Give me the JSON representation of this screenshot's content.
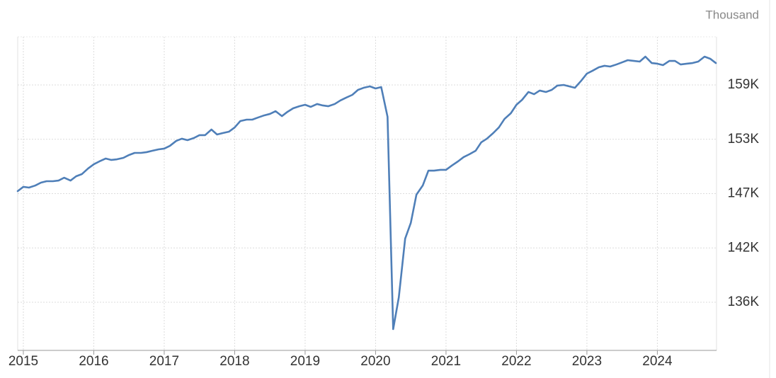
{
  "chart_data": {
    "type": "line",
    "unit_label": "Thousand",
    "x": [
      2014.92,
      2015.0,
      2015.08,
      2015.17,
      2015.25,
      2015.33,
      2015.42,
      2015.5,
      2015.58,
      2015.67,
      2015.75,
      2015.83,
      2015.92,
      2016.0,
      2016.08,
      2016.17,
      2016.25,
      2016.33,
      2016.42,
      2016.5,
      2016.58,
      2016.67,
      2016.75,
      2016.83,
      2016.92,
      2017.0,
      2017.08,
      2017.17,
      2017.25,
      2017.33,
      2017.42,
      2017.5,
      2017.58,
      2017.67,
      2017.75,
      2017.83,
      2017.92,
      2018.0,
      2018.08,
      2018.17,
      2018.25,
      2018.33,
      2018.42,
      2018.5,
      2018.58,
      2018.67,
      2018.75,
      2018.83,
      2018.92,
      2019.0,
      2019.08,
      2019.17,
      2019.25,
      2019.33,
      2019.42,
      2019.5,
      2019.58,
      2019.67,
      2019.75,
      2019.83,
      2019.92,
      2020.0,
      2020.08,
      2020.17,
      2020.25,
      2020.33,
      2020.42,
      2020.5,
      2020.58,
      2020.67,
      2020.75,
      2020.83,
      2020.92,
      2021.0,
      2021.08,
      2021.17,
      2021.25,
      2021.33,
      2021.42,
      2021.5,
      2021.58,
      2021.67,
      2021.75,
      2021.83,
      2021.92,
      2022.0,
      2022.08,
      2022.17,
      2022.25,
      2022.33,
      2022.42,
      2022.5,
      2022.58,
      2022.67,
      2022.75,
      2022.83,
      2022.92,
      2023.0,
      2023.08,
      2023.17,
      2023.25,
      2023.33,
      2023.42,
      2023.5,
      2023.58,
      2023.67,
      2023.75,
      2023.83,
      2023.92,
      2024.0,
      2024.08,
      2024.17,
      2024.25,
      2024.33,
      2024.42,
      2024.5,
      2024.58,
      2024.67,
      2024.75,
      2024.83
    ],
    "series": [
      {
        "color": "#4f7fb8",
        "values": [
          147560,
          148010,
          147930,
          148150,
          148450,
          148600,
          148600,
          148670,
          148970,
          148670,
          149120,
          149340,
          149940,
          150380,
          150680,
          150980,
          150830,
          150900,
          151050,
          151350,
          151570,
          151570,
          151650,
          151790,
          151940,
          152020,
          152310,
          152830,
          153060,
          152910,
          153130,
          153430,
          153430,
          154020,
          153500,
          153650,
          153800,
          154240,
          154910,
          155060,
          155060,
          155280,
          155510,
          155660,
          155950,
          155430,
          155880,
          156250,
          156470,
          156620,
          156400,
          156700,
          156550,
          156470,
          156700,
          157070,
          157360,
          157660,
          158180,
          158400,
          158550,
          158330,
          158480,
          155360,
          133080,
          136420,
          142580,
          144220,
          147190,
          148150,
          149710,
          149710,
          149790,
          149790,
          150230,
          150680,
          151130,
          151420,
          151790,
          152680,
          153060,
          153650,
          154240,
          155130,
          155730,
          156620,
          157140,
          157960,
          157730,
          158110,
          157960,
          158180,
          158630,
          158700,
          158550,
          158400,
          159150,
          159890,
          160190,
          160560,
          160710,
          160630,
          160850,
          161070,
          161300,
          161220,
          161150,
          161670,
          161000,
          160930,
          160780,
          161220,
          161220,
          160850,
          160930,
          161000,
          161150,
          161670,
          161450,
          161000
        ]
      }
    ],
    "xlim": [
      2014.92,
      2024.84
    ],
    "xticks": [
      2015,
      2016,
      2017,
      2018,
      2019,
      2020,
      2021,
      2022,
      2023,
      2024
    ],
    "ylim": [
      130850,
      163750
    ],
    "yticks": [
      {
        "value": 135900,
        "label": "136K"
      },
      {
        "value": 141600,
        "label": "142K"
      },
      {
        "value": 147300,
        "label": "147K"
      },
      {
        "value": 153000,
        "label": "153K"
      },
      {
        "value": 158700,
        "label": "159K"
      }
    ],
    "grid": true
  }
}
